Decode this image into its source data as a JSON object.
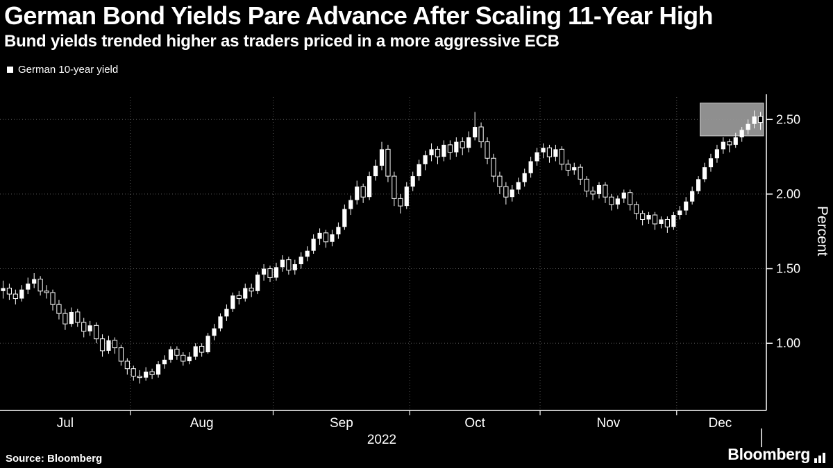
{
  "header": {
    "title": "German Bond Yields Pare Advance After Scaling 11-Year High",
    "subtitle": "Bund yields trended higher as traders priced in a more aggressive ECB"
  },
  "legend": {
    "label": "German 10-year yield",
    "swatch_color": "#ffffff"
  },
  "footer": {
    "source": "Source: Bloomberg",
    "brand": "Bloomberg"
  },
  "colors": {
    "background": "#000000",
    "text": "#ffffff",
    "grid": "#5a5a5a",
    "axis": "#ffffff",
    "candle_up": "#ffffff",
    "candle_down": "#000000",
    "highlight_box": "#9b9b9b"
  },
  "chart_data": {
    "type": "candlestick",
    "series_name": "German 10-year yield",
    "title": "German Bond Yields Pare Advance After Scaling 11-Year High",
    "xlabel": "",
    "ylabel": "Percent",
    "year_label": "2022",
    "unit": "percent",
    "ylim": [
      0.55,
      2.65
    ],
    "yticks": [
      1.0,
      1.5,
      2.0,
      2.5
    ],
    "ytick_labels": [
      "1.00",
      "1.50",
      "2.00",
      "2.50"
    ],
    "grid": "dotted",
    "legend_position": "top-left",
    "months": [
      {
        "label": "Jul",
        "days": 21
      },
      {
        "label": "Aug",
        "days": 23
      },
      {
        "label": "Sep",
        "days": 22
      },
      {
        "label": "Oct",
        "days": 21
      },
      {
        "label": "Nov",
        "days": 22
      },
      {
        "label": "Dec",
        "days": 14
      }
    ],
    "highlight_box": {
      "start_index": 113,
      "value_min": 2.39,
      "value_max": 2.61
    },
    "ohlc": [
      [
        1.35,
        1.42,
        1.3,
        1.37
      ],
      [
        1.37,
        1.4,
        1.29,
        1.33
      ],
      [
        1.33,
        1.36,
        1.26,
        1.3
      ],
      [
        1.3,
        1.39,
        1.28,
        1.36
      ],
      [
        1.36,
        1.44,
        1.33,
        1.4
      ],
      [
        1.4,
        1.47,
        1.37,
        1.43
      ],
      [
        1.43,
        1.45,
        1.32,
        1.35
      ],
      [
        1.35,
        1.39,
        1.3,
        1.34
      ],
      [
        1.34,
        1.36,
        1.22,
        1.26
      ],
      [
        1.26,
        1.29,
        1.16,
        1.2
      ],
      [
        1.2,
        1.23,
        1.09,
        1.13
      ],
      [
        1.13,
        1.24,
        1.11,
        1.21
      ],
      [
        1.21,
        1.23,
        1.11,
        1.14
      ],
      [
        1.14,
        1.17,
        1.04,
        1.08
      ],
      [
        1.08,
        1.15,
        1.05,
        1.12
      ],
      [
        1.12,
        1.14,
        1.0,
        1.03
      ],
      [
        1.03,
        1.06,
        0.91,
        0.95
      ],
      [
        0.95,
        1.05,
        0.93,
        1.02
      ],
      [
        1.02,
        1.04,
        0.93,
        0.97
      ],
      [
        0.97,
        0.99,
        0.85,
        0.88
      ],
      [
        0.88,
        0.9,
        0.79,
        0.83
      ],
      [
        0.83,
        0.85,
        0.75,
        0.78
      ],
      [
        0.78,
        0.82,
        0.73,
        0.77
      ],
      [
        0.77,
        0.84,
        0.75,
        0.81
      ],
      [
        0.81,
        0.83,
        0.76,
        0.79
      ],
      [
        0.79,
        0.88,
        0.77,
        0.86
      ],
      [
        0.86,
        0.92,
        0.83,
        0.89
      ],
      [
        0.89,
        0.98,
        0.87,
        0.96
      ],
      [
        0.96,
        0.98,
        0.89,
        0.92
      ],
      [
        0.92,
        0.94,
        0.85,
        0.88
      ],
      [
        0.88,
        0.94,
        0.86,
        0.91
      ],
      [
        0.91,
        1.0,
        0.89,
        0.98
      ],
      [
        0.98,
        1.0,
        0.91,
        0.94
      ],
      [
        0.94,
        1.07,
        0.93,
        1.05
      ],
      [
        1.05,
        1.13,
        1.02,
        1.1
      ],
      [
        1.1,
        1.2,
        1.08,
        1.18
      ],
      [
        1.18,
        1.26,
        1.15,
        1.23
      ],
      [
        1.23,
        1.34,
        1.21,
        1.32
      ],
      [
        1.32,
        1.35,
        1.26,
        1.3
      ],
      [
        1.3,
        1.4,
        1.28,
        1.37
      ],
      [
        1.37,
        1.4,
        1.31,
        1.35
      ],
      [
        1.35,
        1.48,
        1.33,
        1.46
      ],
      [
        1.46,
        1.53,
        1.42,
        1.5
      ],
      [
        1.5,
        1.52,
        1.41,
        1.44
      ],
      [
        1.44,
        1.54,
        1.42,
        1.51
      ],
      [
        1.51,
        1.59,
        1.48,
        1.56
      ],
      [
        1.56,
        1.58,
        1.46,
        1.49
      ],
      [
        1.49,
        1.56,
        1.46,
        1.53
      ],
      [
        1.53,
        1.61,
        1.5,
        1.58
      ],
      [
        1.58,
        1.65,
        1.55,
        1.62
      ],
      [
        1.62,
        1.73,
        1.6,
        1.7
      ],
      [
        1.7,
        1.77,
        1.66,
        1.74
      ],
      [
        1.74,
        1.76,
        1.64,
        1.68
      ],
      [
        1.68,
        1.76,
        1.65,
        1.73
      ],
      [
        1.73,
        1.81,
        1.7,
        1.78
      ],
      [
        1.78,
        1.93,
        1.76,
        1.9
      ],
      [
        1.9,
        1.99,
        1.86,
        1.96
      ],
      [
        1.96,
        2.09,
        1.93,
        2.05
      ],
      [
        2.05,
        2.07,
        1.94,
        1.98
      ],
      [
        1.98,
        2.15,
        1.96,
        2.12
      ],
      [
        2.12,
        2.23,
        2.09,
        2.19
      ],
      [
        2.19,
        2.35,
        2.16,
        2.3
      ],
      [
        2.3,
        2.33,
        2.08,
        2.12
      ],
      [
        2.12,
        2.15,
        1.92,
        1.97
      ],
      [
        1.97,
        2.0,
        1.87,
        1.92
      ],
      [
        1.92,
        2.08,
        1.9,
        2.05
      ],
      [
        2.05,
        2.15,
        2.02,
        2.12
      ],
      [
        2.12,
        2.23,
        2.09,
        2.2
      ],
      [
        2.2,
        2.29,
        2.16,
        2.26
      ],
      [
        2.26,
        2.34,
        2.22,
        2.3
      ],
      [
        2.3,
        2.32,
        2.2,
        2.25
      ],
      [
        2.25,
        2.36,
        2.22,
        2.33
      ],
      [
        2.33,
        2.36,
        2.23,
        2.28
      ],
      [
        2.28,
        2.38,
        2.25,
        2.35
      ],
      [
        2.35,
        2.38,
        2.26,
        2.31
      ],
      [
        2.31,
        2.42,
        2.28,
        2.38
      ],
      [
        2.38,
        2.55,
        2.36,
        2.45
      ],
      [
        2.45,
        2.48,
        2.31,
        2.35
      ],
      [
        2.35,
        2.38,
        2.2,
        2.24
      ],
      [
        2.24,
        2.27,
        2.08,
        2.12
      ],
      [
        2.12,
        2.15,
        2.0,
        2.05
      ],
      [
        2.05,
        2.08,
        1.93,
        1.98
      ],
      [
        1.98,
        2.06,
        1.95,
        2.03
      ],
      [
        2.03,
        2.11,
        2.0,
        2.08
      ],
      [
        2.08,
        2.17,
        2.05,
        2.14
      ],
      [
        2.14,
        2.25,
        2.11,
        2.22
      ],
      [
        2.22,
        2.31,
        2.19,
        2.28
      ],
      [
        2.28,
        2.34,
        2.24,
        2.31
      ],
      [
        2.31,
        2.33,
        2.21,
        2.25
      ],
      [
        2.25,
        2.33,
        2.22,
        2.3
      ],
      [
        2.3,
        2.32,
        2.16,
        2.2
      ],
      [
        2.2,
        2.23,
        2.12,
        2.16
      ],
      [
        2.16,
        2.21,
        2.13,
        2.18
      ],
      [
        2.18,
        2.2,
        2.06,
        2.1
      ],
      [
        2.1,
        2.12,
        1.98,
        2.02
      ],
      [
        2.02,
        2.05,
        1.96,
        2.0
      ],
      [
        2.0,
        2.08,
        1.97,
        2.06
      ],
      [
        2.06,
        2.08,
        1.94,
        1.98
      ],
      [
        1.98,
        2.0,
        1.89,
        1.93
      ],
      [
        1.93,
        1.99,
        1.9,
        1.97
      ],
      [
        1.97,
        2.03,
        1.94,
        2.01
      ],
      [
        2.01,
        2.03,
        1.89,
        1.93
      ],
      [
        1.93,
        1.95,
        1.83,
        1.87
      ],
      [
        1.87,
        1.89,
        1.79,
        1.83
      ],
      [
        1.83,
        1.88,
        1.8,
        1.86
      ],
      [
        1.86,
        1.88,
        1.76,
        1.8
      ],
      [
        1.8,
        1.85,
        1.77,
        1.83
      ],
      [
        1.83,
        1.85,
        1.74,
        1.78
      ],
      [
        1.78,
        1.88,
        1.76,
        1.86
      ],
      [
        1.86,
        1.92,
        1.83,
        1.89
      ],
      [
        1.89,
        1.98,
        1.86,
        1.95
      ],
      [
        1.95,
        2.05,
        1.93,
        2.02
      ],
      [
        2.02,
        2.12,
        2.0,
        2.1
      ],
      [
        2.1,
        2.21,
        2.08,
        2.18
      ],
      [
        2.18,
        2.27,
        2.15,
        2.24
      ],
      [
        2.24,
        2.33,
        2.21,
        2.3
      ],
      [
        2.3,
        2.38,
        2.27,
        2.35
      ],
      [
        2.35,
        2.37,
        2.28,
        2.33
      ],
      [
        2.33,
        2.41,
        2.31,
        2.38
      ],
      [
        2.38,
        2.45,
        2.35,
        2.43
      ],
      [
        2.43,
        2.5,
        2.4,
        2.47
      ],
      [
        2.47,
        2.56,
        2.44,
        2.52
      ],
      [
        2.52,
        2.55,
        2.43,
        2.48
      ]
    ]
  }
}
